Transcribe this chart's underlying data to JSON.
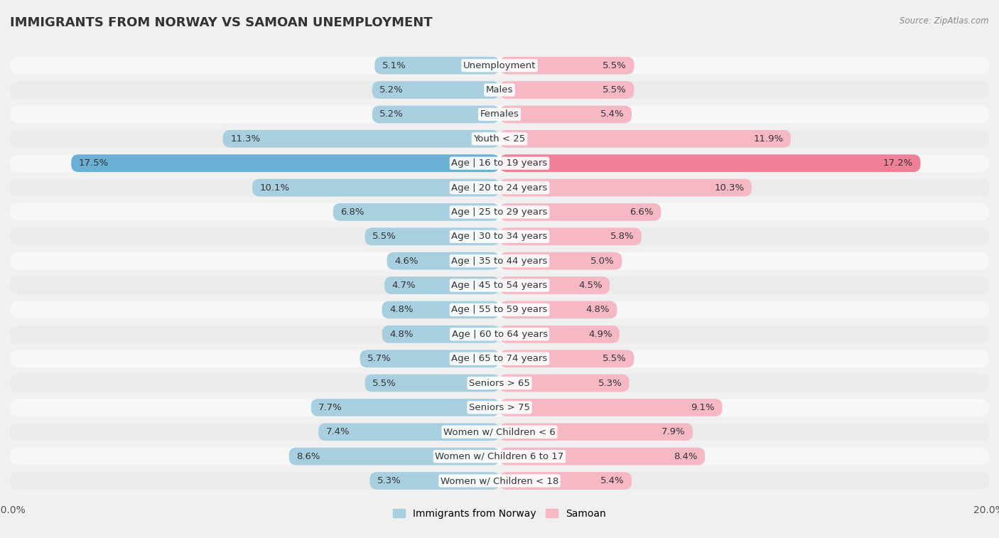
{
  "title": "IMMIGRANTS FROM NORWAY VS SAMOAN UNEMPLOYMENT",
  "source": "Source: ZipAtlas.com",
  "categories": [
    "Unemployment",
    "Males",
    "Females",
    "Youth < 25",
    "Age | 16 to 19 years",
    "Age | 20 to 24 years",
    "Age | 25 to 29 years",
    "Age | 30 to 34 years",
    "Age | 35 to 44 years",
    "Age | 45 to 54 years",
    "Age | 55 to 59 years",
    "Age | 60 to 64 years",
    "Age | 65 to 74 years",
    "Seniors > 65",
    "Seniors > 75",
    "Women w/ Children < 6",
    "Women w/ Children 6 to 17",
    "Women w/ Children < 18"
  ],
  "norway_values": [
    5.1,
    5.2,
    5.2,
    11.3,
    17.5,
    10.1,
    6.8,
    5.5,
    4.6,
    4.7,
    4.8,
    4.8,
    5.7,
    5.5,
    7.7,
    7.4,
    8.6,
    5.3
  ],
  "samoan_values": [
    5.5,
    5.5,
    5.4,
    11.9,
    17.2,
    10.3,
    6.6,
    5.8,
    5.0,
    4.5,
    4.8,
    4.9,
    5.5,
    5.3,
    9.1,
    7.9,
    8.4,
    5.4
  ],
  "norway_color": "#a8cfe0",
  "samoan_color": "#f5b8c4",
  "norway_highlight": "#6aafd4",
  "samoan_highlight": "#f08098",
  "row_color_light": "#f7f7f7",
  "row_color_dark": "#ebebeb",
  "background_color": "#f0f0f0",
  "axis_max": 20.0,
  "label_fontsize": 9.5,
  "value_fontsize": 9.5,
  "title_fontsize": 13,
  "legend_fontsize": 10
}
